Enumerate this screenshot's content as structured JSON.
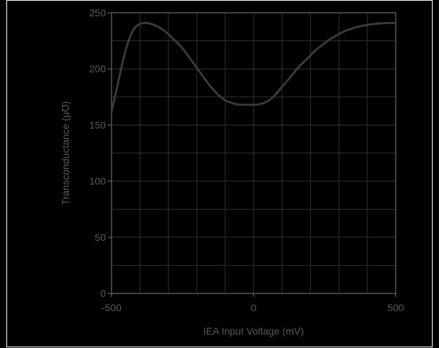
{
  "colors": {
    "background": "#000000",
    "border": "#ffffff",
    "grid": "#333333",
    "axis": "#555555",
    "curve": "#3a3a3a",
    "label": "#5a5a5a"
  },
  "chart_data": {
    "type": "line",
    "title": "",
    "xlabel": "IEA Input Voltage (mV)",
    "ylabel": "Transconductance (µ℧)",
    "xlim": [
      -500,
      500
    ],
    "ylim": [
      0,
      250
    ],
    "x_ticks": [
      -500,
      0,
      500
    ],
    "x_tick_labels": [
      "-500",
      "0",
      "500"
    ],
    "y_ticks": [
      0,
      50,
      100,
      150,
      200,
      250
    ],
    "y_tick_labels": [
      "0",
      "50",
      "100",
      "150",
      "200",
      "250"
    ],
    "x_grid_step": 100,
    "y_grid_step": 25,
    "grid": true,
    "legend": "none",
    "series": [
      {
        "x": [
          -500,
          -480,
          -460,
          -440,
          -420,
          -400,
          -380,
          -360,
          -340,
          -320,
          -300,
          -280,
          -260,
          -240,
          -220,
          -200,
          -180,
          -160,
          -140,
          -120,
          -100,
          -80,
          -60,
          -40,
          -20,
          0,
          20,
          40,
          60,
          80,
          100,
          120,
          140,
          160,
          180,
          200,
          220,
          240,
          260,
          280,
          300,
          320,
          340,
          360,
          380,
          400,
          420,
          440,
          460,
          480,
          500
        ],
        "y": [
          162,
          184,
          207,
          225,
          236,
          240,
          241,
          240,
          238,
          235,
          231,
          226,
          221,
          215,
          208,
          201,
          194,
          187,
          181,
          176,
          172,
          170,
          168.5,
          168,
          168,
          168,
          168.5,
          170,
          173,
          178,
          184,
          190,
          196,
          202,
          207,
          212,
          217,
          221,
          225,
          228,
          231,
          233.5,
          235.5,
          237,
          238.2,
          239.2,
          239.9,
          240.4,
          240.7,
          240.9,
          241
        ]
      }
    ]
  }
}
